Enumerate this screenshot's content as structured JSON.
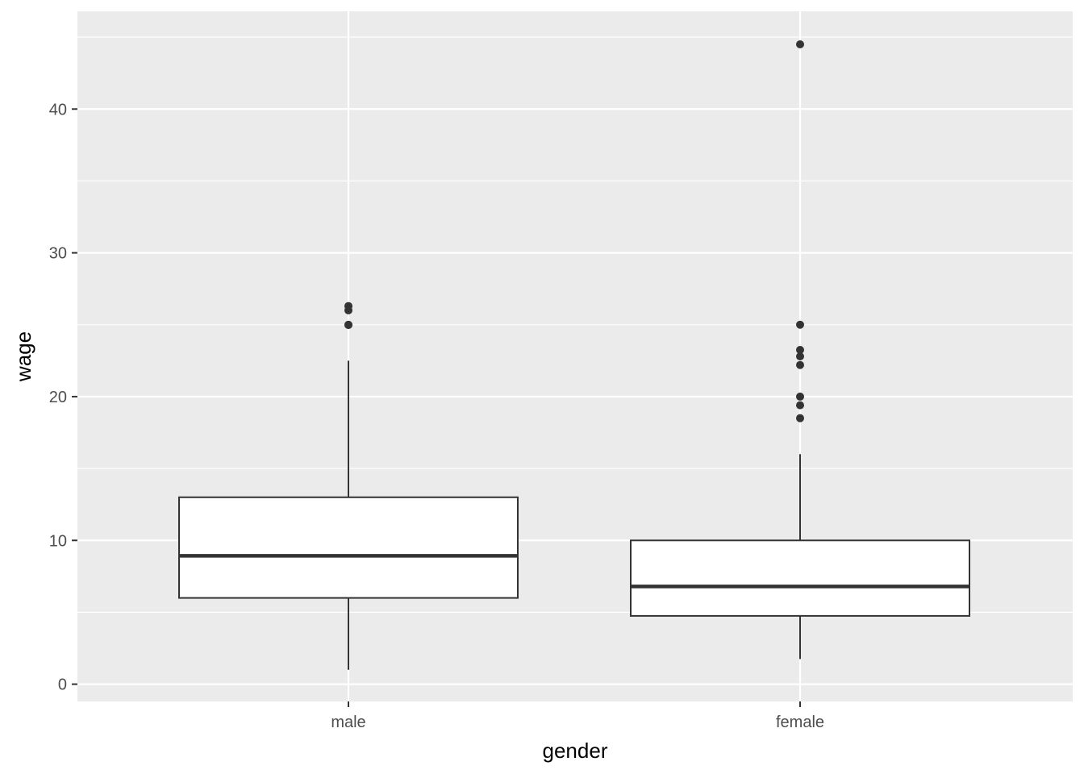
{
  "chart_data": {
    "type": "boxplot",
    "xlabel": "gender",
    "ylabel": "wage",
    "categories": [
      "male",
      "female"
    ],
    "ylim": [
      -1.2,
      46.8
    ],
    "yticks": [
      0,
      10,
      20,
      30,
      40
    ],
    "ytick_labels": [
      "0",
      "10",
      "20",
      "30",
      "40"
    ],
    "grid": true,
    "colors": {
      "panel_background": "#ebebeb",
      "grid_line": "#ffffff",
      "box_fill": "#ffffff",
      "box_line": "#333333",
      "outlier": "#333333",
      "tick_text": "#4d4d4d",
      "title_text": "#000000"
    },
    "boxes": [
      {
        "category": "male",
        "whisker_low": 1.0,
        "q1": 6.0,
        "median": 8.93,
        "q3": 13.0,
        "whisker_high": 22.5,
        "outliers": [
          24.98,
          25.0,
          26.0,
          26.3
        ]
      },
      {
        "category": "female",
        "whisker_low": 1.75,
        "q1": 4.75,
        "median": 6.8,
        "q3": 10.0,
        "whisker_high": 16.0,
        "outliers": [
          18.5,
          19.4,
          20.0,
          22.2,
          22.8,
          23.25,
          25.0,
          44.5
        ]
      }
    ]
  }
}
